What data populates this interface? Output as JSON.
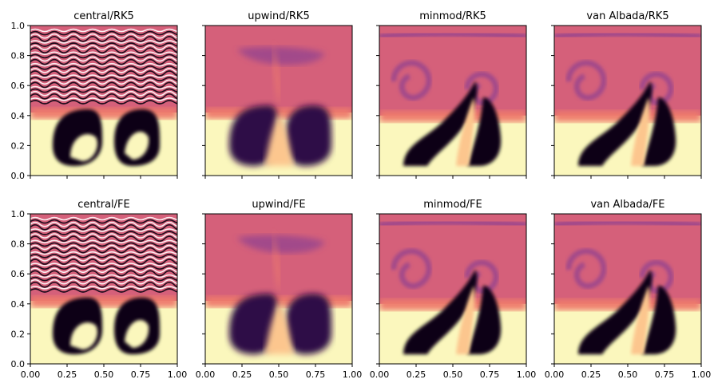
{
  "chart_data": {
    "type": "heatmap",
    "layout": {
      "rows": 2,
      "cols": 4,
      "sharex": true,
      "sharey": true
    },
    "x_ticks": [
      "0.00",
      "0.25",
      "0.50",
      "0.75",
      "1.00"
    ],
    "y_ticks": [
      "0.0",
      "0.2",
      "0.4",
      "0.6",
      "0.8",
      "1.0"
    ],
    "xlim": [
      0,
      1
    ],
    "ylim": [
      0,
      1
    ],
    "colormap": "magma",
    "panels": [
      {
        "title": "central/RK5",
        "scheme": "central",
        "integrator": "RK5",
        "pattern": "noisy"
      },
      {
        "title": "upwind/RK5",
        "scheme": "upwind",
        "integrator": "RK5",
        "pattern": "smooth"
      },
      {
        "title": "minmod/RK5",
        "scheme": "minmod",
        "integrator": "RK5",
        "pattern": "swirl"
      },
      {
        "title": "van Albada/RK5",
        "scheme": "van Albada",
        "integrator": "RK5",
        "pattern": "swirl"
      },
      {
        "title": "central/FE",
        "scheme": "central",
        "integrator": "FE",
        "pattern": "noisy"
      },
      {
        "title": "upwind/FE",
        "scheme": "upwind",
        "integrator": "FE",
        "pattern": "smooth"
      },
      {
        "title": "minmod/FE",
        "scheme": "minmod",
        "integrator": "FE",
        "pattern": "swirl"
      },
      {
        "title": "van Albada/FE",
        "scheme": "van Albada",
        "integrator": "FE",
        "pattern": "swirl"
      }
    ],
    "colors": {
      "pale": "#fbf7bd",
      "peach": "#fcc68e",
      "salmon": "#ee7a6c",
      "rose": "#d5607a",
      "mauve": "#a24a8a",
      "purple": "#6a2b7e",
      "indigo": "#2e1146",
      "black": "#0a0312",
      "white": "#ffffff"
    }
  }
}
